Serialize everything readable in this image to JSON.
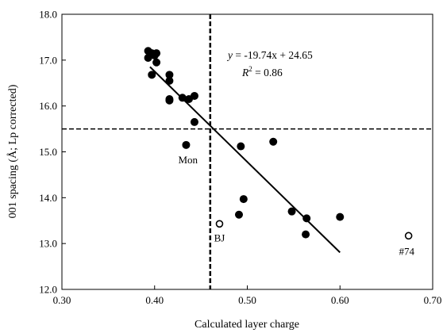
{
  "chart_data": {
    "type": "scatter",
    "xlabel": "Calculated layer charge",
    "ylabel": "001 spacing (Å; Lp corrected)",
    "xlim": [
      0.3,
      0.7
    ],
    "ylim": [
      12.0,
      18.0
    ],
    "xticks": [
      "0.30",
      "0.40",
      "0.50",
      "0.60",
      "0.70"
    ],
    "yticks": [
      "12.0",
      "13.0",
      "14.0",
      "15.0",
      "16.0",
      "17.0",
      "18.0"
    ],
    "grid": false,
    "series": [
      {
        "marker": "filled-circle",
        "points": [
          {
            "x": 0.393,
            "y": 17.2
          },
          {
            "x": 0.393,
            "y": 17.05
          },
          {
            "x": 0.397,
            "y": 17.15
          },
          {
            "x": 0.4,
            "y": 17.1
          },
          {
            "x": 0.402,
            "y": 17.15
          },
          {
            "x": 0.402,
            "y": 16.95
          },
          {
            "x": 0.397,
            "y": 16.68
          },
          {
            "x": 0.416,
            "y": 16.68
          },
          {
            "x": 0.416,
            "y": 16.55
          },
          {
            "x": 0.416,
            "y": 16.15
          },
          {
            "x": 0.416,
            "y": 16.12
          },
          {
            "x": 0.43,
            "y": 16.18
          },
          {
            "x": 0.437,
            "y": 16.15
          },
          {
            "x": 0.443,
            "y": 16.22
          },
          {
            "x": 0.443,
            "y": 15.65
          },
          {
            "x": 0.434,
            "y": 15.15
          },
          {
            "x": 0.493,
            "y": 15.12
          },
          {
            "x": 0.528,
            "y": 15.22
          },
          {
            "x": 0.496,
            "y": 13.97
          },
          {
            "x": 0.491,
            "y": 13.63
          },
          {
            "x": 0.548,
            "y": 13.7
          },
          {
            "x": 0.564,
            "y": 13.55
          },
          {
            "x": 0.563,
            "y": 13.2
          },
          {
            "x": 0.6,
            "y": 13.58
          }
        ]
      },
      {
        "marker": "open-circle",
        "points": [
          {
            "x": 0.47,
            "y": 13.43
          },
          {
            "x": 0.674,
            "y": 13.17
          }
        ]
      }
    ],
    "trendline": {
      "x_start": 0.395,
      "x_end": 0.6,
      "slope": -19.74,
      "intercept": 24.65
    },
    "reference_lines": {
      "vertical_x": 0.46,
      "horizontal_y": 15.5
    },
    "equation": {
      "line1": "y = -19.74x + 24.65",
      "r2_prefix": "R",
      "r2_exp": "2",
      "r2_value": " = 0.86"
    },
    "annotations": [
      {
        "text": "Mon",
        "x": 0.436,
        "y": 14.75
      },
      {
        "text": "BJ",
        "x": 0.47,
        "y": 13.05
      },
      {
        "text": "#74",
        "x": 0.672,
        "y": 12.75
      }
    ]
  }
}
